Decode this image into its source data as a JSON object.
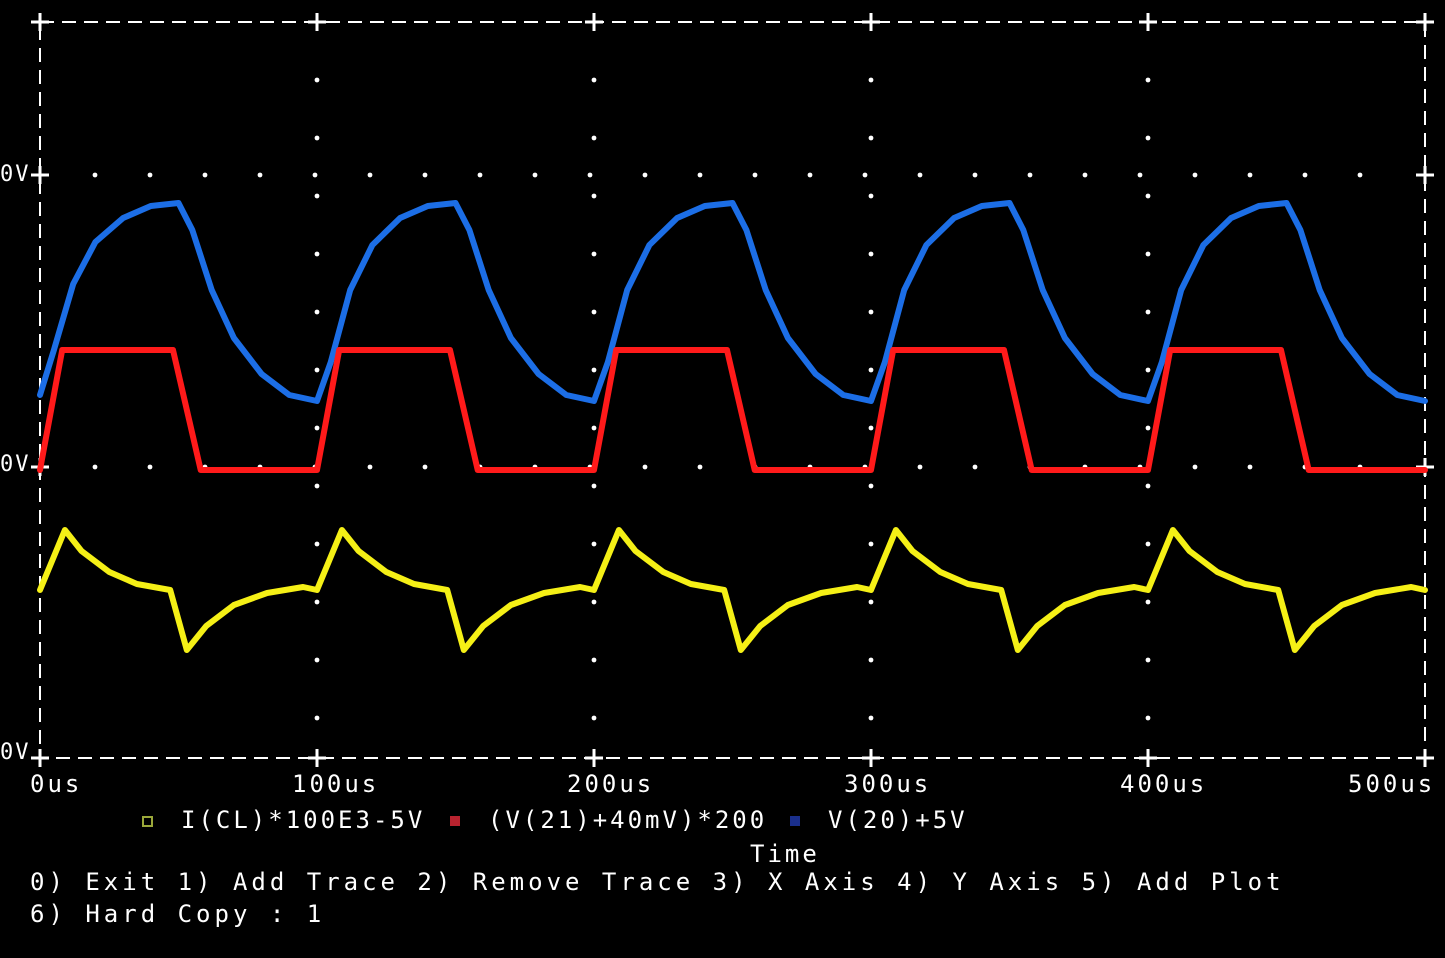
{
  "chart_data": {
    "type": "line",
    "xlabel": "Time",
    "x_ticks": [
      "0us",
      "100us",
      "200us",
      "300us",
      "400us",
      "500us"
    ],
    "xlim": [
      0,
      500
    ],
    "y_ticks": [
      "0V",
      "0V",
      "0V"
    ],
    "grid": true,
    "legend_placement": "bottom",
    "series": [
      {
        "name": "V(20)+5V",
        "color": "#1c6ee6",
        "marker": "square",
        "x": [
          0,
          5,
          12,
          20,
          30,
          40,
          50,
          55,
          62,
          70,
          80,
          90,
          100,
          105,
          112,
          120,
          130,
          140,
          150,
          155,
          162,
          170,
          180,
          190,
          200,
          205,
          212,
          220,
          230,
          240,
          250,
          255,
          262,
          270,
          280,
          290,
          300,
          305,
          312,
          320,
          330,
          340,
          350,
          355,
          362,
          370,
          380,
          390,
          400,
          405,
          412,
          420,
          430,
          440,
          450,
          455,
          462,
          470,
          480,
          490,
          500
        ],
        "y": [
          0.25,
          0.4,
          0.62,
          0.76,
          0.84,
          0.88,
          0.89,
          0.8,
          0.6,
          0.44,
          0.32,
          0.25,
          0.23,
          0.36,
          0.6,
          0.75,
          0.84,
          0.88,
          0.89,
          0.8,
          0.6,
          0.44,
          0.32,
          0.25,
          0.23,
          0.36,
          0.6,
          0.75,
          0.84,
          0.88,
          0.89,
          0.8,
          0.6,
          0.44,
          0.32,
          0.25,
          0.23,
          0.36,
          0.6,
          0.75,
          0.84,
          0.88,
          0.89,
          0.8,
          0.6,
          0.44,
          0.32,
          0.25,
          0.23,
          0.36,
          0.6,
          0.75,
          0.84,
          0.88,
          0.89,
          0.8,
          0.6,
          0.44,
          0.32,
          0.25,
          0.23
        ]
      },
      {
        "name": "(V(21)+40mV)*200",
        "color": "#ff1a1a",
        "marker": "x",
        "x": [
          0,
          8,
          20,
          40,
          48,
          58,
          100,
          108,
          120,
          140,
          148,
          158,
          200,
          208,
          220,
          240,
          248,
          258,
          300,
          308,
          320,
          340,
          348,
          358,
          400,
          408,
          420,
          440,
          448,
          458,
          500
        ],
        "y": [
          0.0,
          0.4,
          0.4,
          0.4,
          0.4,
          0.0,
          0.0,
          0.4,
          0.4,
          0.4,
          0.4,
          0.0,
          0.0,
          0.4,
          0.4,
          0.4,
          0.4,
          0.0,
          0.0,
          0.4,
          0.4,
          0.4,
          0.4,
          0.0,
          0.0,
          0.4,
          0.4,
          0.4,
          0.4,
          0.0,
          0.0
        ]
      },
      {
        "name": "I(CL)*100E3-5V",
        "color": "#f5f016",
        "marker": "square-outline",
        "x": [
          0,
          9,
          15,
          25,
          35,
          47,
          53,
          60,
          70,
          82,
          95,
          100,
          109,
          115,
          125,
          135,
          147,
          153,
          160,
          170,
          182,
          195,
          200,
          209,
          215,
          225,
          235,
          247,
          253,
          260,
          270,
          282,
          295,
          300,
          309,
          315,
          325,
          335,
          347,
          353,
          360,
          370,
          382,
          395,
          400,
          409,
          415,
          425,
          435,
          447,
          453,
          460,
          470,
          482,
          495,
          500
        ],
        "y": [
          -0.4,
          -0.2,
          -0.27,
          -0.34,
          -0.38,
          -0.4,
          -0.6,
          -0.52,
          -0.45,
          -0.41,
          -0.39,
          -0.4,
          -0.2,
          -0.27,
          -0.34,
          -0.38,
          -0.4,
          -0.6,
          -0.52,
          -0.45,
          -0.41,
          -0.39,
          -0.4,
          -0.2,
          -0.27,
          -0.34,
          -0.38,
          -0.4,
          -0.6,
          -0.52,
          -0.45,
          -0.41,
          -0.39,
          -0.4,
          -0.2,
          -0.27,
          -0.34,
          -0.38,
          -0.4,
          -0.6,
          -0.52,
          -0.45,
          -0.41,
          -0.39,
          -0.4,
          -0.2,
          -0.27,
          -0.34,
          -0.38,
          -0.4,
          -0.6,
          -0.52,
          -0.45,
          -0.41,
          -0.39,
          -0.4
        ]
      }
    ]
  },
  "menu": {
    "line1": "0) Exit 1) Add Trace 2) Remove Trace 3) X Axis 4) Y Axis 5) Add Plot",
    "line2": "6) Hard Copy : 1"
  }
}
